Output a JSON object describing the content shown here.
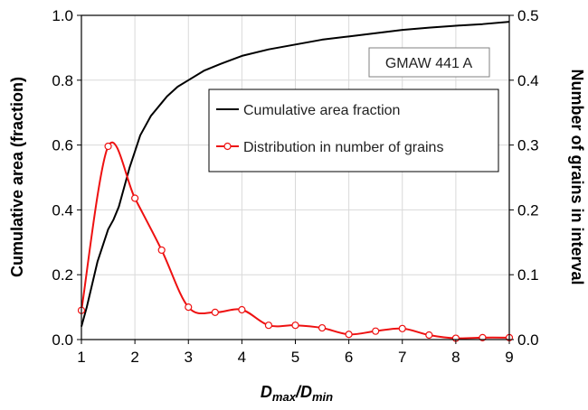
{
  "chart_data": {
    "type": "line",
    "annotation": "GMAW 441 A",
    "xlabel": {
      "main": "D",
      "sub1": "max",
      "sep": "/D",
      "sub2": "min"
    },
    "ylabel_left": "Cumulative area (fraction)",
    "ylabel_right": "Number of grains in interval",
    "xlim": [
      1,
      9
    ],
    "ylim_left": [
      0,
      1.0
    ],
    "ylim_right": [
      0,
      0.5
    ],
    "x_ticks": [
      "1",
      "2",
      "3",
      "4",
      "5",
      "6",
      "7",
      "8",
      "9"
    ],
    "y_left_ticks": [
      "0.0",
      "0.2",
      "0.4",
      "0.6",
      "0.8",
      "1.0"
    ],
    "y_right_ticks": [
      "0.0",
      "0.1",
      "0.2",
      "0.3",
      "0.4",
      "0.5"
    ],
    "grid": true,
    "legend_position": "upper-right",
    "series": [
      {
        "name": "Cumulative area fraction",
        "axis": "left",
        "color": "#000000",
        "markers": false,
        "x": [
          1.0,
          1.1,
          1.2,
          1.3,
          1.4,
          1.5,
          1.6,
          1.7,
          1.8,
          1.9,
          2.0,
          2.1,
          2.2,
          2.3,
          2.4,
          2.5,
          2.6,
          2.8,
          3.0,
          3.3,
          3.6,
          4.0,
          4.5,
          5.0,
          5.5,
          6.0,
          6.5,
          7.0,
          7.5,
          8.0,
          8.5,
          9.0
        ],
        "y": [
          0.04,
          0.1,
          0.17,
          0.24,
          0.29,
          0.34,
          0.37,
          0.41,
          0.47,
          0.53,
          0.58,
          0.63,
          0.66,
          0.69,
          0.71,
          0.73,
          0.75,
          0.78,
          0.8,
          0.83,
          0.85,
          0.875,
          0.895,
          0.91,
          0.925,
          0.935,
          0.945,
          0.955,
          0.962,
          0.968,
          0.973,
          0.98
        ]
      },
      {
        "name": "Distribution in number of grains",
        "axis": "right",
        "color": "#ee1111",
        "markers": true,
        "x": [
          1.0,
          1.5,
          2.0,
          2.5,
          3.0,
          3.5,
          4.0,
          4.5,
          5.0,
          5.5,
          6.0,
          6.5,
          7.0,
          7.5,
          8.0,
          8.5,
          9.0
        ],
        "y": [
          0.045,
          0.298,
          0.218,
          0.138,
          0.05,
          0.042,
          0.046,
          0.022,
          0.022,
          0.018,
          0.008,
          0.013,
          0.017,
          0.007,
          0.002,
          0.003,
          0.003
        ]
      }
    ]
  }
}
